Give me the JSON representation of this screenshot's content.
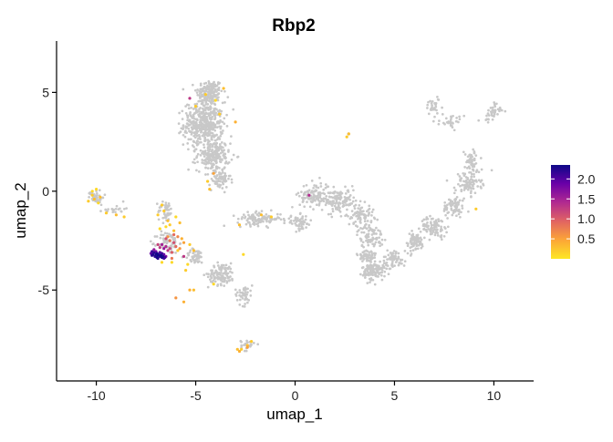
{
  "chart_data": {
    "type": "scatter",
    "title": "Rbp2",
    "xlabel": "umap_1",
    "ylabel": "umap_2",
    "xlim": [
      -12.0,
      12.0
    ],
    "ylim": [
      -9.6,
      7.6
    ],
    "x_ticks": [
      -10,
      -5,
      0,
      5,
      10
    ],
    "y_ticks": [
      -5,
      0,
      5
    ],
    "grid": false,
    "legend": {
      "placement": "right",
      "ticks": [
        2.0,
        1.5,
        1.0,
        0.5
      ],
      "tick_labels": [
        "2.0",
        "1.5",
        "1.0",
        "0.5"
      ],
      "range": [
        0.0,
        2.35
      ],
      "colors": [
        "#fde724",
        "#fca636",
        "#e16462",
        "#b12a90",
        "#6a00a8",
        "#0d0887"
      ]
    },
    "background_color": "#c8c8c8",
    "clusters": [
      {
        "cx": -4.3,
        "cy": 5.0,
        "sx": 0.6,
        "sy": 0.6,
        "n": 160
      },
      {
        "cx": -4.6,
        "cy": 3.4,
        "sx": 0.9,
        "sy": 1.0,
        "n": 420
      },
      {
        "cx": -4.1,
        "cy": 1.8,
        "sx": 0.75,
        "sy": 0.7,
        "n": 200
      },
      {
        "cx": -3.8,
        "cy": 0.6,
        "sx": 0.5,
        "sy": 0.45,
        "n": 70
      },
      {
        "cx": -10.0,
        "cy": -0.3,
        "sx": 0.35,
        "sy": 0.35,
        "n": 40
      },
      {
        "cx": -9.1,
        "cy": -0.9,
        "sx": 0.5,
        "sy": 0.2,
        "n": 20
      },
      {
        "cx": -6.5,
        "cy": -1.0,
        "sx": 0.35,
        "sy": 0.5,
        "n": 45
      },
      {
        "cx": -6.4,
        "cy": -2.6,
        "sx": 0.5,
        "sy": 0.5,
        "n": 70
      },
      {
        "cx": -5.0,
        "cy": -3.3,
        "sx": 0.5,
        "sy": 0.35,
        "n": 50
      },
      {
        "cx": -3.7,
        "cy": -4.2,
        "sx": 0.6,
        "sy": 0.5,
        "n": 110
      },
      {
        "cx": -2.6,
        "cy": -5.2,
        "sx": 0.4,
        "sy": 0.5,
        "n": 45
      },
      {
        "cx": -2.4,
        "cy": -7.8,
        "sx": 0.3,
        "sy": 0.25,
        "n": 25
      },
      {
        "cx": -1.8,
        "cy": -1.4,
        "sx": 1.0,
        "sy": 0.3,
        "n": 110
      },
      {
        "cx": 0.2,
        "cy": -1.6,
        "sx": 0.6,
        "sy": 0.35,
        "n": 60
      },
      {
        "cx": 1.0,
        "cy": -0.2,
        "sx": 0.7,
        "sy": 0.6,
        "n": 120
      },
      {
        "cx": 2.3,
        "cy": -0.5,
        "sx": 0.7,
        "sy": 0.55,
        "n": 110
      },
      {
        "cx": 3.3,
        "cy": -1.2,
        "sx": 0.6,
        "sy": 0.5,
        "n": 80
      },
      {
        "cx": 3.8,
        "cy": -2.3,
        "sx": 0.6,
        "sy": 0.5,
        "n": 80
      },
      {
        "cx": 3.6,
        "cy": -3.3,
        "sx": 0.45,
        "sy": 0.35,
        "n": 60
      },
      {
        "cx": 4.0,
        "cy": -4.0,
        "sx": 0.55,
        "sy": 0.45,
        "n": 130
      },
      {
        "cx": 5.0,
        "cy": -3.4,
        "sx": 0.5,
        "sy": 0.4,
        "n": 60
      },
      {
        "cx": 6.0,
        "cy": -2.6,
        "sx": 0.5,
        "sy": 0.45,
        "n": 70
      },
      {
        "cx": 7.0,
        "cy": -1.8,
        "sx": 0.6,
        "sy": 0.45,
        "n": 90
      },
      {
        "cx": 8.0,
        "cy": -0.8,
        "sx": 0.5,
        "sy": 0.5,
        "n": 70
      },
      {
        "cx": 8.7,
        "cy": 0.4,
        "sx": 0.6,
        "sy": 0.55,
        "n": 90
      },
      {
        "cx": 8.9,
        "cy": 1.5,
        "sx": 0.35,
        "sy": 0.55,
        "n": 50
      },
      {
        "cx": 7.9,
        "cy": 3.5,
        "sx": 0.55,
        "sy": 0.3,
        "n": 30
      },
      {
        "cx": 9.9,
        "cy": 4.0,
        "sx": 0.4,
        "sy": 0.45,
        "n": 40
      },
      {
        "cx": 7.0,
        "cy": 4.3,
        "sx": 0.45,
        "sy": 0.4,
        "n": 30
      },
      {
        "cx": 2.7,
        "cy": 2.9,
        "sx": 0.05,
        "sy": 0.08,
        "n": 4
      }
    ],
    "expressed_points": [
      {
        "x": -7.0,
        "y": -3.2,
        "v": 2.3
      },
      {
        "x": -7.1,
        "y": -3.1,
        "v": 2.2
      },
      {
        "x": -6.9,
        "y": -3.25,
        "v": 2.35
      },
      {
        "x": -6.8,
        "y": -3.3,
        "v": 2.2
      },
      {
        "x": -7.2,
        "y": -3.05,
        "v": 2.1
      },
      {
        "x": -6.7,
        "y": -3.35,
        "v": 2.3
      },
      {
        "x": -6.6,
        "y": -3.4,
        "v": 2.0
      },
      {
        "x": -7.15,
        "y": -3.2,
        "v": 2.25
      },
      {
        "x": -6.95,
        "y": -3.15,
        "v": 2.3
      },
      {
        "x": -6.85,
        "y": -3.2,
        "v": 2.15
      },
      {
        "x": -7.05,
        "y": -3.3,
        "v": 2.2
      },
      {
        "x": -6.75,
        "y": -3.25,
        "v": 2.35
      },
      {
        "x": -7.25,
        "y": -3.15,
        "v": 1.9
      },
      {
        "x": -6.65,
        "y": -3.3,
        "v": 2.25
      },
      {
        "x": -6.55,
        "y": -3.35,
        "v": 2.1
      },
      {
        "x": -7.0,
        "y": -3.05,
        "v": 1.8
      },
      {
        "x": -6.9,
        "y": -3.4,
        "v": 2.2
      },
      {
        "x": -6.8,
        "y": -3.1,
        "v": 2.0
      },
      {
        "x": -7.1,
        "y": -2.95,
        "v": 1.6
      },
      {
        "x": -6.6,
        "y": -3.2,
        "v": 1.9
      },
      {
        "x": -6.95,
        "y": -3.35,
        "v": 2.3
      },
      {
        "x": -7.2,
        "y": -3.25,
        "v": 2.2
      },
      {
        "x": -6.7,
        "y": -3.15,
        "v": 2.1
      },
      {
        "x": -6.5,
        "y": -3.3,
        "v": 1.7
      },
      {
        "x": -6.5,
        "y": -2.8,
        "v": 1.4
      },
      {
        "x": -6.3,
        "y": -2.9,
        "v": 1.2
      },
      {
        "x": -6.7,
        "y": -2.7,
        "v": 1.5
      },
      {
        "x": -6.4,
        "y": -3.0,
        "v": 1.3
      },
      {
        "x": -6.1,
        "y": -2.6,
        "v": 1.1
      },
      {
        "x": -6.6,
        "y": -2.9,
        "v": 1.6
      },
      {
        "x": -6.2,
        "y": -3.1,
        "v": 1.0
      },
      {
        "x": -6.8,
        "y": -2.85,
        "v": 1.3
      },
      {
        "x": -6.0,
        "y": -2.8,
        "v": 0.9
      },
      {
        "x": -6.3,
        "y": -2.5,
        "v": 0.8
      },
      {
        "x": -6.5,
        "y": -2.4,
        "v": 1.1
      },
      {
        "x": -6.9,
        "y": -2.7,
        "v": 1.2
      },
      {
        "x": -5.9,
        "y": -2.3,
        "v": 0.7
      },
      {
        "x": -5.8,
        "y": -2.9,
        "v": 0.6
      },
      {
        "x": -6.1,
        "y": -2.2,
        "v": 0.9
      },
      {
        "x": -5.6,
        "y": -2.6,
        "v": 0.5
      },
      {
        "x": -5.6,
        "y": -3.3,
        "v": 1.3
      },
      {
        "x": -6.2,
        "y": -3.4,
        "v": 0.8
      },
      {
        "x": -6.4,
        "y": -2.3,
        "v": 0.6
      },
      {
        "x": -5.7,
        "y": -2.4,
        "v": 0.4
      },
      {
        "x": -6.4,
        "y": -1.5,
        "v": 0.3
      },
      {
        "x": -6.6,
        "y": -1.0,
        "v": 0.2
      },
      {
        "x": -6.5,
        "y": -1.8,
        "v": 0.1
      },
      {
        "x": -5.8,
        "y": -1.6,
        "v": 0.3
      },
      {
        "x": -6.7,
        "y": -0.7,
        "v": 0.2
      },
      {
        "x": -6.0,
        "y": -1.3,
        "v": 0.1
      },
      {
        "x": -6.3,
        "y": -1.7,
        "v": 0.2
      },
      {
        "x": -6.1,
        "y": -2.0,
        "v": 0.3
      },
      {
        "x": -6.8,
        "y": -1.9,
        "v": 0.1
      },
      {
        "x": -6.9,
        "y": -1.2,
        "v": 0.2
      },
      {
        "x": -6.2,
        "y": -3.6,
        "v": 0.1
      },
      {
        "x": -5.9,
        "y": -3.0,
        "v": 0.2
      },
      {
        "x": -5.4,
        "y": -3.7,
        "v": 0.1
      },
      {
        "x": -5.5,
        "y": -4.0,
        "v": 0.2
      },
      {
        "x": -5.1,
        "y": -3.0,
        "v": 0.3
      },
      {
        "x": -5.3,
        "y": -5.0,
        "v": 0.4
      },
      {
        "x": -6.7,
        "y": -3.6,
        "v": 0.1
      },
      {
        "x": -5.3,
        "y": -2.7,
        "v": 0.2
      },
      {
        "x": -10.2,
        "y": -0.2,
        "v": 0.2
      },
      {
        "x": -10.0,
        "y": 0.1,
        "v": 0.1
      },
      {
        "x": -9.8,
        "y": -0.3,
        "v": 0.3
      },
      {
        "x": -10.4,
        "y": -0.5,
        "v": 0.2
      },
      {
        "x": -9.9,
        "y": -0.6,
        "v": 0.1
      },
      {
        "x": -9.5,
        "y": -1.1,
        "v": 0.2
      },
      {
        "x": -9.0,
        "y": -1.2,
        "v": 0.3
      },
      {
        "x": -8.6,
        "y": -1.3,
        "v": 0.2
      },
      {
        "x": -10.2,
        "y": 0.0,
        "v": 0.1
      },
      {
        "x": -10.1,
        "y": -0.4,
        "v": 0.3
      },
      {
        "x": -5.3,
        "y": 4.7,
        "v": 1.3
      },
      {
        "x": -4.5,
        "y": 4.9,
        "v": 0.2
      },
      {
        "x": -3.8,
        "y": 3.9,
        "v": 0.2
      },
      {
        "x": -3.6,
        "y": 5.2,
        "v": 0.3
      },
      {
        "x": -4.0,
        "y": 4.6,
        "v": 0.1
      },
      {
        "x": -5.0,
        "y": 4.3,
        "v": 0.2
      },
      {
        "x": -3.0,
        "y": 3.5,
        "v": 0.4
      },
      {
        "x": -4.4,
        "y": 0.5,
        "v": 0.2
      },
      {
        "x": -4.3,
        "y": 0.1,
        "v": 0.3
      },
      {
        "x": -4.1,
        "y": 0.9,
        "v": 0.5
      },
      {
        "x": -2.8,
        "y": -1.7,
        "v": 0.3
      },
      {
        "x": -1.2,
        "y": -1.3,
        "v": 0.2
      },
      {
        "x": -1.7,
        "y": -1.2,
        "v": 0.3
      },
      {
        "x": -2.6,
        "y": -3.2,
        "v": 0.1
      },
      {
        "x": 0.7,
        "y": -0.2,
        "v": 1.4
      },
      {
        "x": -2.4,
        "y": -7.8,
        "v": 0.3
      },
      {
        "x": -2.7,
        "y": -8.0,
        "v": 0.2
      },
      {
        "x": -2.8,
        "y": -8.1,
        "v": 0.4
      },
      {
        "x": -2.9,
        "y": -8.0,
        "v": 0.3
      },
      {
        "x": -2.4,
        "y": -7.9,
        "v": 0.5
      },
      {
        "x": -2.2,
        "y": -7.6,
        "v": 0.2
      },
      {
        "x": -4.1,
        "y": -4.7,
        "v": 0.1
      },
      {
        "x": -5.1,
        "y": -5.0,
        "v": 0.3
      },
      {
        "x": -5.6,
        "y": -5.6,
        "v": 0.4
      },
      {
        "x": -6.0,
        "y": -5.4,
        "v": 0.6
      },
      {
        "x": 2.7,
        "y": 2.9,
        "v": 0.3
      },
      {
        "x": 2.6,
        "y": 2.75,
        "v": 0.2
      },
      {
        "x": 9.1,
        "y": -0.9,
        "v": 0.2
      }
    ]
  }
}
